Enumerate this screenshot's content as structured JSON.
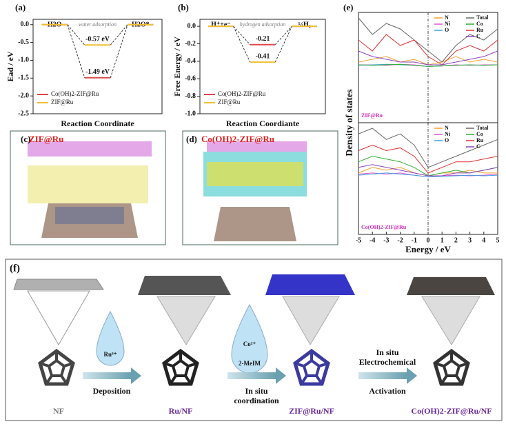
{
  "chart_data": [
    {
      "type": "energy",
      "panel": "(a)",
      "ylabel": "Ead / eV",
      "xlabel": "Reaction Coordinate",
      "annotation": "water adsorption",
      "categories": [
        "H2O",
        null,
        "H2O*"
      ],
      "series": [
        {
          "name": "Co(OH)2-ZIF@Ru",
          "color": "#e0474c",
          "values": [
            0,
            -1.49,
            0
          ],
          "value_labels": [
            null,
            "-1.49 eV",
            null
          ]
        },
        {
          "name": "ZIF@Ru",
          "color": "#f0c030",
          "values": [
            0,
            -0.57,
            0
          ],
          "value_labels": [
            null,
            "-0.57 eV",
            null
          ]
        }
      ],
      "ylim": [
        -2.5,
        0.15
      ],
      "yticks": [
        {
          "value": 0,
          "label": "0.0"
        },
        -0.5,
        {
          "value": -1,
          "label": "-1.0"
        },
        -1.5,
        {
          "value": -2,
          "label": "-2.0"
        },
        -2.5
      ]
    },
    {
      "type": "energy",
      "panel": "(b)",
      "ylabel": "Free Energy / eV",
      "xlabel": "Reaction Coordiante",
      "annotation": "hydrogen adsorption",
      "categories": [
        "H⁺+e⁻",
        null,
        "½H₂"
      ],
      "series": [
        {
          "name": "Co(OH)2-ZIF@Ru",
          "color": "#e0474c",
          "values": [
            0,
            -0.21,
            0
          ],
          "value_labels": [
            null,
            "-0.21",
            null
          ]
        },
        {
          "name": "ZIF@Ru",
          "color": "#f0c030",
          "values": [
            0,
            -0.41,
            0
          ],
          "value_labels": [
            null,
            "-0.41",
            null
          ]
        }
      ],
      "ylim": [
        -1,
        0.08
      ],
      "yticks": [
        {
          "value": 0,
          "label": "0.0"
        },
        -0.2,
        -0.4,
        -0.6,
        -0.8,
        {
          "value": -1,
          "label": "-1.0"
        }
      ]
    },
    {
      "type": "line",
      "panel": "(e)",
      "subtitle": "ZIF@Ru",
      "ylabel": "Density of states",
      "xlim": [
        -5,
        5
      ],
      "ylim": [
        -1,
        1
      ],
      "x": [
        -5,
        -4,
        -3,
        -2,
        -1,
        0,
        1,
        2,
        3,
        4,
        5
      ],
      "series": [
        {
          "name": "N",
          "color": "#f0a030",
          "values": [
            0.1,
            0.15,
            0.2,
            0.1,
            0.15,
            0.05,
            0.1,
            0.2,
            0.1,
            0.15,
            0.1
          ]
        },
        {
          "name": "Ni",
          "color": "#e050d0",
          "values": [
            0.05,
            0.05,
            0.04,
            0.06,
            0.05,
            0.02,
            0.03,
            0.05,
            0.04,
            0.05,
            0.05
          ]
        },
        {
          "name": "O",
          "color": "#40a0e0",
          "values": [
            0.04,
            0.05,
            0.06,
            0.05,
            0.04,
            0.02,
            0.03,
            0.04,
            0.05,
            0.04,
            0.05
          ]
        },
        {
          "name": "Total",
          "color": "#666666",
          "values": [
            0.9,
            0.6,
            0.8,
            0.7,
            0.5,
            0.3,
            0.1,
            0.4,
            0.6,
            0.5,
            0.7
          ]
        },
        {
          "name": "Co",
          "color": "#30b030",
          "values": [
            0.05,
            0.04,
            0.05,
            0.06,
            0.04,
            0.02,
            0.03,
            0.04,
            0.05,
            0.04,
            0.05
          ]
        },
        {
          "name": "Ru",
          "color": "#e03030",
          "values": [
            0.5,
            0.3,
            0.6,
            0.4,
            0.5,
            0.2,
            0.05,
            0.3,
            0.4,
            0.3,
            0.5
          ]
        },
        {
          "name": "C",
          "color": "#9040c0",
          "values": [
            0.3,
            0.2,
            0.15,
            0.1,
            0.1,
            0.05,
            0.05,
            0.1,
            0.15,
            0.2,
            0.3
          ]
        }
      ]
    },
    {
      "type": "line",
      "subtitle": "Co(OH)2-ZIF@Ru",
      "xlabel": "Energy / eV",
      "xlim": [
        -5,
        5
      ],
      "ylim": [
        -1,
        1
      ],
      "xticks": [
        -5,
        -4,
        -3,
        -2,
        -1,
        0,
        1,
        2,
        3,
        4,
        5
      ],
      "x": [
        -5,
        -4,
        -3,
        -2,
        -1,
        0,
        1,
        2,
        3,
        4,
        5
      ],
      "series": [
        {
          "name": "N",
          "color": "#f0a030",
          "values": [
            0.1,
            0.2,
            0.15,
            0.2,
            0.1,
            0.05,
            0.1,
            0.1,
            0.15,
            0.1,
            0.1
          ]
        },
        {
          "name": "Ni",
          "color": "#e050d0",
          "values": [
            0.08,
            0.1,
            0.08,
            0.1,
            0.06,
            0.03,
            0.05,
            0.06,
            0.05,
            0.06,
            0.08
          ]
        },
        {
          "name": "O",
          "color": "#40a0e0",
          "values": [
            0.06,
            0.08,
            0.1,
            0.08,
            0.06,
            0.03,
            0.04,
            0.05,
            0.06,
            0.05,
            0.06
          ]
        },
        {
          "name": "Total",
          "color": "#666666",
          "values": [
            0.8,
            0.9,
            0.7,
            0.8,
            0.6,
            0.2,
            0.3,
            0.4,
            0.5,
            0.6,
            0.7
          ]
        },
        {
          "name": "Co",
          "color": "#30b030",
          "values": [
            0.3,
            0.4,
            0.35,
            0.3,
            0.2,
            0.05,
            0.1,
            0.15,
            0.1,
            0.15,
            0.2
          ]
        },
        {
          "name": "Ru",
          "color": "#e03030",
          "values": [
            0.5,
            0.6,
            0.5,
            0.55,
            0.4,
            0.1,
            0.2,
            0.3,
            0.3,
            0.35,
            0.4
          ]
        },
        {
          "name": "C",
          "color": "#9040c0",
          "values": [
            0.2,
            0.25,
            0.2,
            0.15,
            0.1,
            0.05,
            0.05,
            0.1,
            0.1,
            0.15,
            0.2
          ]
        }
      ]
    }
  ],
  "panels": {
    "c": {
      "label": "(c)",
      "title": "ZIF@Ru"
    },
    "d": {
      "label": "(d)",
      "title": "Co(OH)2-ZIF@Ru"
    },
    "f": {
      "label": "(f)",
      "steps": [
        "NF",
        "Ru/NF",
        "ZIF@Ru/NF",
        "Co(OH)2-ZIF@Ru/NF"
      ],
      "drops": [
        [
          "Ru³⁺"
        ],
        [
          "Co²⁺",
          "2-MeIM"
        ]
      ],
      "arrows": [
        {
          "above": [],
          "below": [
            "Deposition"
          ]
        },
        {
          "above": [],
          "below": [
            "In situ",
            "coordination"
          ]
        },
        {
          "above": [
            "In situ",
            "Electrochemical"
          ],
          "below": [
            "Activation"
          ]
        }
      ]
    }
  }
}
